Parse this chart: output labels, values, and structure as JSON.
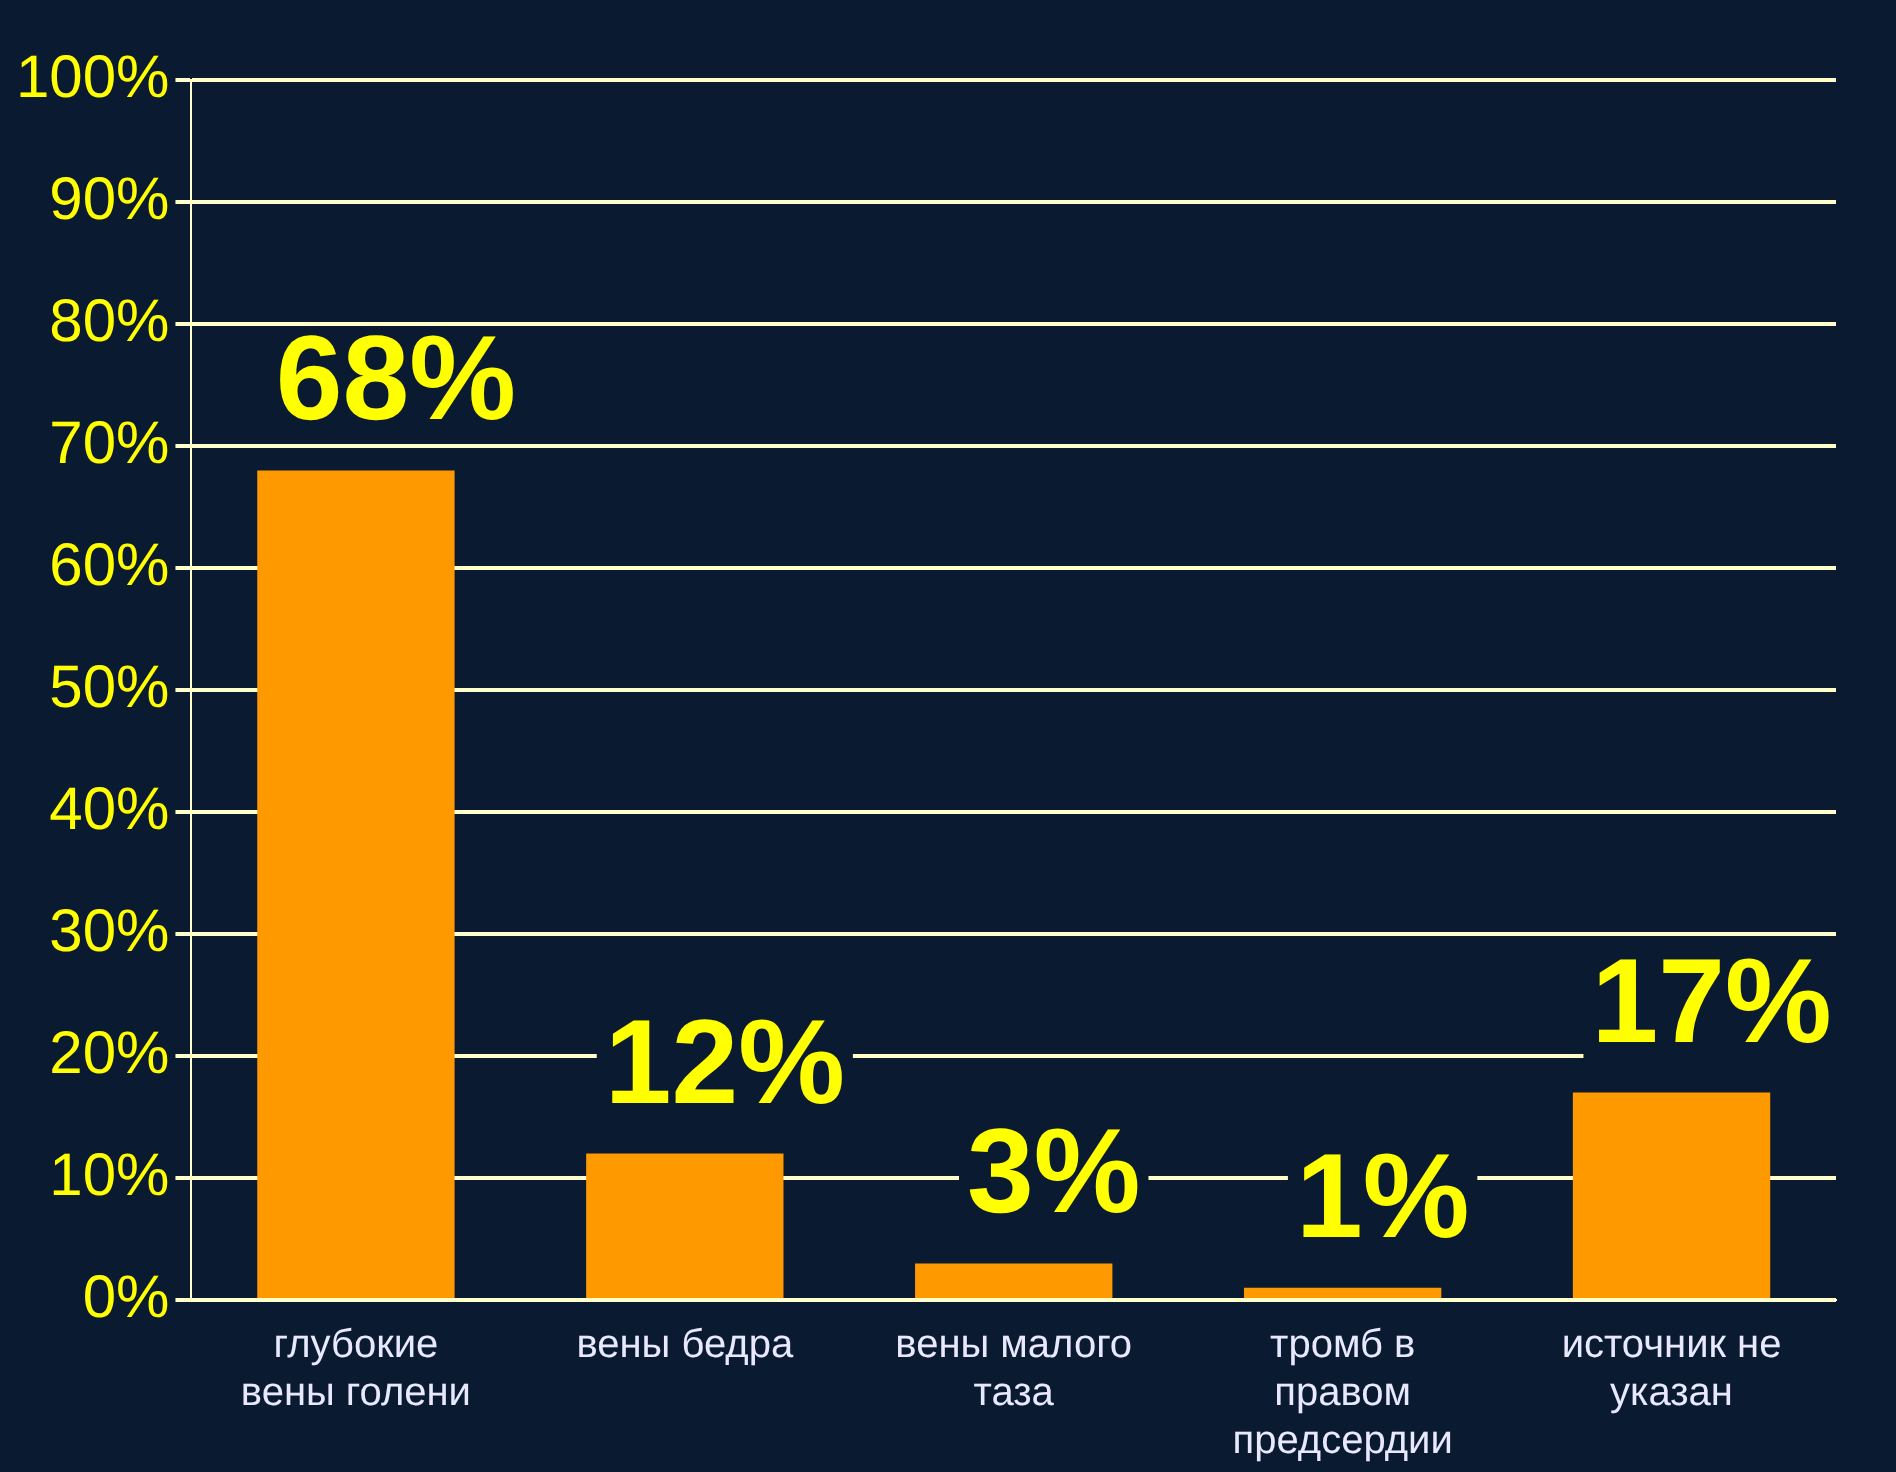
{
  "chart_data": {
    "type": "bar",
    "categories": [
      "глубокие вены голени",
      "вены бедра",
      "вены малого таза",
      "тромб в правом предсердии",
      "источник не указан"
    ],
    "values": [
      68,
      12,
      3,
      1,
      17
    ],
    "value_labels": [
      "68%",
      "12%",
      "3%",
      "1%",
      "17%"
    ],
    "color": "#ff9900",
    "ylim": [
      0,
      100
    ],
    "yticks": [
      {
        "value": 0,
        "label": "0%"
      },
      {
        "value": 10,
        "label": "10%"
      },
      {
        "value": 20,
        "label": "20%"
      },
      {
        "value": 30,
        "label": "30%"
      },
      {
        "value": 40,
        "label": "40%"
      },
      {
        "value": 50,
        "label": "50%"
      },
      {
        "value": 60,
        "label": "60%"
      },
      {
        "value": 70,
        "label": "70%"
      },
      {
        "value": 80,
        "label": "80%"
      },
      {
        "value": 90,
        "label": "90%"
      },
      {
        "value": 100,
        "label": "100%"
      }
    ],
    "grid": "y",
    "legend": false
  }
}
